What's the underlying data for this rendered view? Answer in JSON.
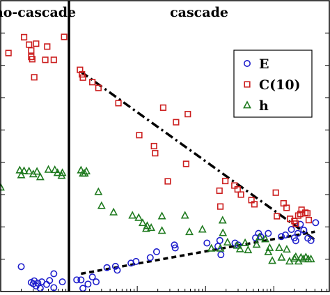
{
  "chart_data": {
    "type": "scatter",
    "title": "",
    "xlabel": "",
    "ylabel": "",
    "x_scale": "log",
    "xlim": [
      0.1,
      6500
    ],
    "ylim": [
      0,
      9
    ],
    "grid": false,
    "legend_position": "top-right",
    "divider_x": 1,
    "regions": [
      {
        "label": "no-cascade",
        "side": "left"
      },
      {
        "label": "cascade",
        "side": "right"
      }
    ],
    "series": [
      {
        "name": "E",
        "marker": "circle",
        "color": "#1f1fcc",
        "points": [
          [
            0.2,
            0.77
          ],
          [
            0.28,
            0.28
          ],
          [
            0.3,
            0.24
          ],
          [
            0.31,
            0.33
          ],
          [
            0.33,
            0.17
          ],
          [
            0.35,
            0.26
          ],
          [
            0.38,
            0.1
          ],
          [
            0.4,
            0.3
          ],
          [
            0.47,
            0.22
          ],
          [
            0.52,
            0.34
          ],
          [
            0.6,
            0.12
          ],
          [
            0.8,
            0.3
          ],
          [
            0.6,
            0.55
          ],
          [
            1.3,
            0.36
          ],
          [
            1.5,
            0.36
          ],
          [
            1.6,
            0.1
          ],
          [
            1.9,
            0.23
          ],
          [
            2.2,
            0.45
          ],
          [
            2.5,
            0.3
          ],
          [
            3.6,
            0.74
          ],
          [
            4.8,
            0.78
          ],
          [
            5.1,
            0.66
          ],
          [
            8.1,
            0.88
          ],
          [
            9.6,
            0.93
          ],
          [
            15.5,
            1.05
          ],
          [
            19.2,
            1.23
          ],
          [
            35,
            1.44
          ],
          [
            36,
            1.35
          ],
          [
            105,
            1.5
          ],
          [
            152,
            1.4
          ],
          [
            162,
            1.58
          ],
          [
            168,
            1.14
          ],
          [
            270,
            1.5
          ],
          [
            300,
            1.44
          ],
          [
            540,
            1.66
          ],
          [
            598,
            1.8
          ],
          [
            640,
            1.7
          ],
          [
            830,
            1.8
          ],
          [
            1290,
            1.7
          ],
          [
            1480,
            1.75
          ],
          [
            1810,
            1.92
          ],
          [
            2000,
            1.66
          ],
          [
            2100,
            1.57
          ],
          [
            2250,
            1.8
          ],
          [
            2450,
            2.08
          ],
          [
            2750,
            1.9
          ],
          [
            3150,
            1.65
          ],
          [
            3500,
            1.58
          ],
          [
            4100,
            2.13
          ]
        ]
      },
      {
        "name": "C(10)",
        "marker": "square",
        "color": "#cc1f1f",
        "points": [
          [
            0.13,
            7.38
          ],
          [
            0.22,
            7.87
          ],
          [
            0.26,
            7.64
          ],
          [
            0.28,
            7.26
          ],
          [
            0.28,
            7.46
          ],
          [
            0.29,
            7.19
          ],
          [
            0.31,
            6.63
          ],
          [
            0.33,
            7.67
          ],
          [
            0.45,
            7.17
          ],
          [
            0.48,
            7.58
          ],
          [
            0.6,
            7.17
          ],
          [
            0.85,
            7.88
          ],
          [
            1.45,
            6.86
          ],
          [
            1.55,
            6.72
          ],
          [
            1.6,
            6.62
          ],
          [
            2.2,
            6.48
          ],
          [
            2.7,
            6.3
          ],
          [
            5.3,
            5.83
          ],
          [
            10.7,
            4.84
          ],
          [
            17.6,
            4.5
          ],
          [
            24,
            5.69
          ],
          [
            18.3,
            4.28
          ],
          [
            55,
            5.49
          ],
          [
            37,
            5.24
          ],
          [
            28,
            3.41
          ],
          [
            52,
            3.95
          ],
          [
            165,
            2.63
          ],
          [
            160,
            3.12
          ],
          [
            195,
            3.42
          ],
          [
            265,
            3.28
          ],
          [
            295,
            3.16
          ],
          [
            330,
            3.0
          ],
          [
            470,
            2.83
          ],
          [
            520,
            2.7
          ],
          [
            1070,
            3.06
          ],
          [
            1110,
            2.33
          ],
          [
            1390,
            2.73
          ],
          [
            1540,
            2.59
          ],
          [
            1730,
            2.25
          ],
          [
            2000,
            2.18
          ],
          [
            2100,
            2.1
          ],
          [
            2280,
            2.35
          ],
          [
            2450,
            2.4
          ],
          [
            2550,
            2.53
          ],
          [
            2900,
            2.44
          ],
          [
            3100,
            2.42
          ],
          [
            3250,
            2.21
          ]
        ]
      },
      {
        "name": "h",
        "marker": "triangle",
        "color": "#1f7a1f",
        "points": [
          [
            0.1,
            3.22
          ],
          [
            0.19,
            3.75
          ],
          [
            0.2,
            3.6
          ],
          [
            0.22,
            3.73
          ],
          [
            0.26,
            3.72
          ],
          [
            0.3,
            3.63
          ],
          [
            0.34,
            3.71
          ],
          [
            0.38,
            3.54
          ],
          [
            0.5,
            3.77
          ],
          [
            0.62,
            3.76
          ],
          [
            0.68,
            3.67
          ],
          [
            0.78,
            3.58
          ],
          [
            0.8,
            3.67
          ],
          [
            1.5,
            3.75
          ],
          [
            1.6,
            3.65
          ],
          [
            1.7,
            3.65
          ],
          [
            1.8,
            3.72
          ],
          [
            2.7,
            3.08
          ],
          [
            3.0,
            2.65
          ],
          [
            4.5,
            2.45
          ],
          [
            8.5,
            2.35
          ],
          [
            10.5,
            2.28
          ],
          [
            12,
            2.12
          ],
          [
            14,
            2.03
          ],
          [
            16,
            1.97
          ],
          [
            13.5,
            1.94
          ],
          [
            23,
            2.33
          ],
          [
            23,
            1.88
          ],
          [
            50,
            2.35
          ],
          [
            58,
            1.84
          ],
          [
            90,
            1.92
          ],
          [
            122,
            1.33
          ],
          [
            165,
            1.33
          ],
          [
            178,
            2.2
          ],
          [
            180,
            1.81
          ],
          [
            210,
            1.52
          ],
          [
            290,
            1.42
          ],
          [
            320,
            1.31
          ],
          [
            380,
            1.5
          ],
          [
            420,
            1.28
          ],
          [
            560,
            1.45
          ],
          [
            620,
            1.68
          ],
          [
            750,
            1.62
          ],
          [
            830,
            1.22
          ],
          [
            870,
            1.35
          ],
          [
            950,
            0.95
          ],
          [
            1200,
            1.35
          ],
          [
            1300,
            1.05
          ],
          [
            1550,
            1.3
          ],
          [
            1700,
            0.93
          ],
          [
            2000,
            1.02
          ],
          [
            2100,
            1.07
          ],
          [
            2300,
            0.93
          ],
          [
            2500,
            1.05
          ],
          [
            2700,
            1.0
          ],
          [
            2950,
            1.06
          ],
          [
            3200,
            1.0
          ],
          [
            3500,
            1.0
          ]
        ]
      }
    ],
    "trendlines": [
      {
        "style": "dash-dot",
        "from": [
          1.5,
          6.8
        ],
        "to": [
          4000,
          1.6
        ]
      },
      {
        "style": "dashed",
        "from": [
          1.5,
          0.55
        ],
        "to": [
          4000,
          1.85
        ]
      }
    ]
  }
}
